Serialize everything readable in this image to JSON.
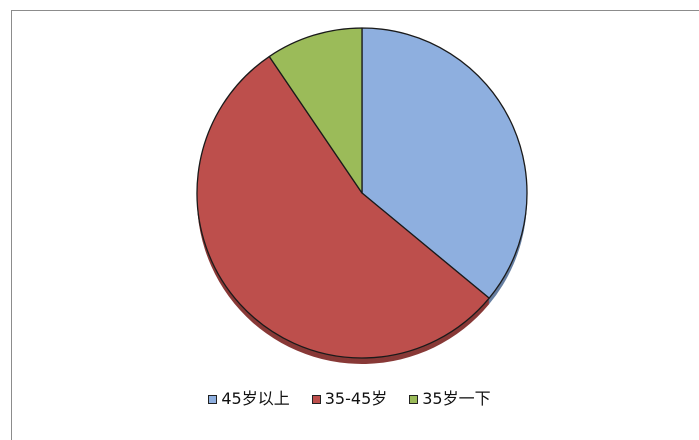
{
  "chart_data": {
    "type": "pie",
    "title": "",
    "slices": [
      {
        "label": "45岁以上",
        "value": 36,
        "color": "#8eafdf"
      },
      {
        "label": "35-45岁",
        "value": 54.5,
        "color": "#bd4f4c"
      },
      {
        "label": "35岁一下",
        "value": 9.5,
        "color": "#9bbb59"
      }
    ],
    "legend_position": "bottom"
  }
}
